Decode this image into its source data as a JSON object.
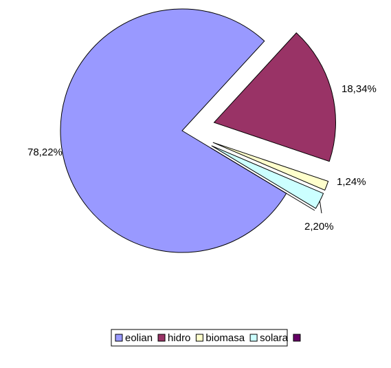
{
  "chart_data": {
    "type": "pie",
    "categories": [
      "eolian",
      "hidro",
      "biomasa",
      "solara",
      null
    ],
    "values": [
      78.22,
      18.34,
      1.24,
      2.2,
      0
    ],
    "value_labels": [
      "78,22%",
      "18,34%",
      "1,24%",
      "2,20%",
      null
    ],
    "colors": [
      "#9999ff",
      "#993366",
      "#ffffcc",
      "#ccffff",
      "#660066"
    ],
    "start_angle": 121,
    "legend": "bottom"
  }
}
